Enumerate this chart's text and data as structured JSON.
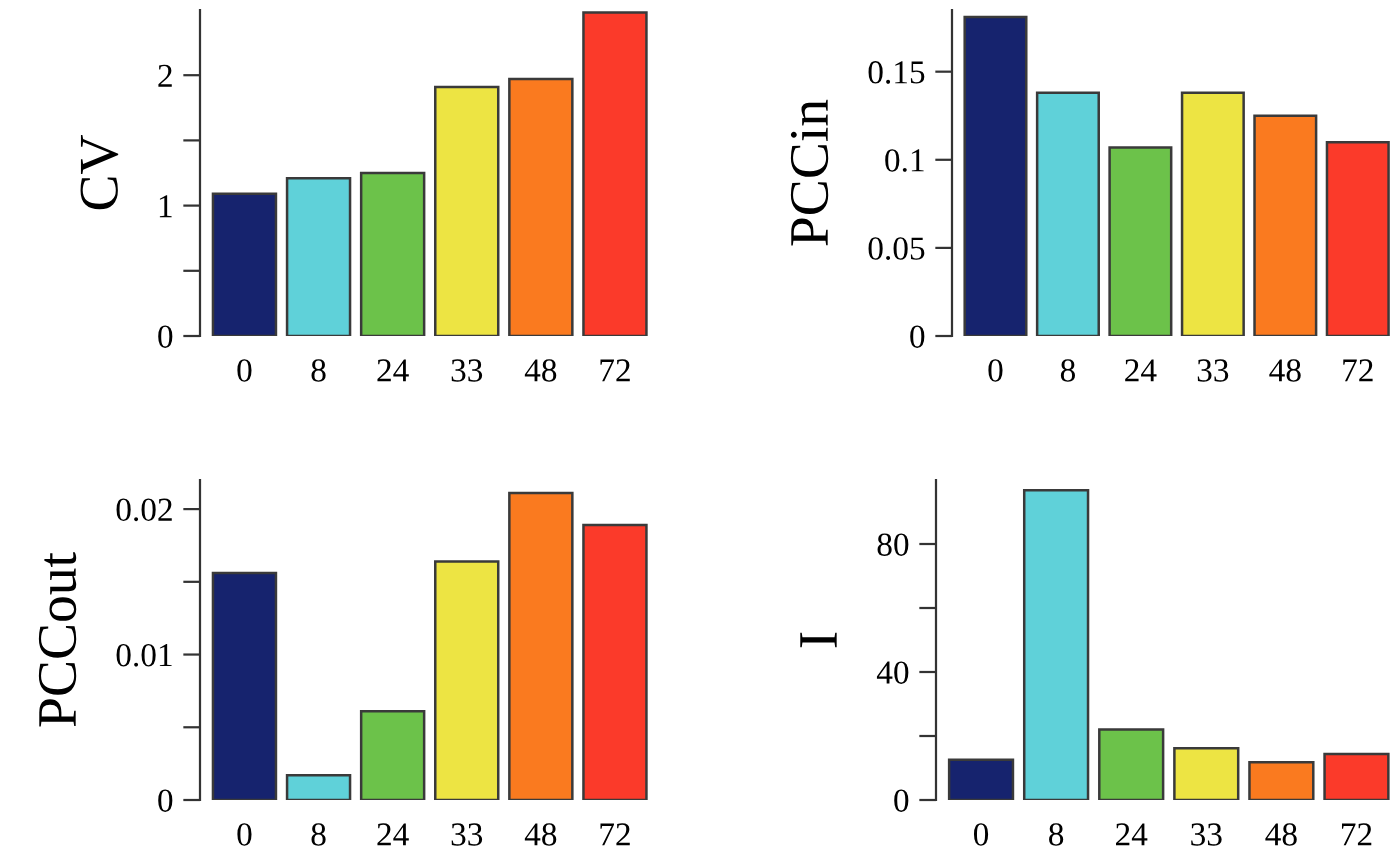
{
  "chart_data": [
    {
      "type": "bar",
      "ylabel": "CV",
      "categories": [
        "0",
        "8",
        "24",
        "33",
        "48",
        "72"
      ],
      "values": [
        1.09,
        1.21,
        1.25,
        1.91,
        1.97,
        2.48
      ],
      "colors": [
        "#16236e",
        "#5fd1d9",
        "#6cc24a",
        "#ede443",
        "#fa7a1f",
        "#fb3a2a"
      ],
      "ylim": [
        0,
        2.5
      ],
      "yticks": [
        0,
        {
          "value": 0.5,
          "label": null
        },
        1,
        {
          "value": 1.5,
          "label": null
        },
        2
      ],
      "grid": false,
      "legend": false
    },
    {
      "type": "bar",
      "ylabel": "PCCin",
      "categories": [
        "0",
        "8",
        "24",
        "33",
        "48",
        "72"
      ],
      "values": [
        0.181,
        0.138,
        0.107,
        0.138,
        0.125,
        0.11
      ],
      "colors": [
        "#16236e",
        "#5fd1d9",
        "#6cc24a",
        "#ede443",
        "#fa7a1f",
        "#fb3a2a"
      ],
      "ylim": [
        0,
        0.185
      ],
      "yticks": [
        0,
        0.05,
        0.1,
        0.15
      ],
      "grid": false,
      "legend": false
    },
    {
      "type": "bar",
      "ylabel": "PCCout",
      "categories": [
        "0",
        "8",
        "24",
        "33",
        "48",
        "72"
      ],
      "values": [
        0.0156,
        0.0017,
        0.0061,
        0.0164,
        0.0211,
        0.0189
      ],
      "colors": [
        "#16236e",
        "#5fd1d9",
        "#6cc24a",
        "#ede443",
        "#fa7a1f",
        "#fb3a2a"
      ],
      "ylim": [
        0,
        0.022
      ],
      "yticks": [
        0,
        {
          "value": 0.005,
          "label": null
        },
        0.01,
        {
          "value": 0.015,
          "label": null
        },
        0.02
      ],
      "grid": false,
      "legend": false
    },
    {
      "type": "bar",
      "ylabel": "I",
      "categories": [
        "0",
        "8",
        "24",
        "33",
        "48",
        "72"
      ],
      "values": [
        12.6,
        96.8,
        22.0,
        16.2,
        11.8,
        14.4
      ],
      "colors": [
        "#16236e",
        "#5fd1d9",
        "#6cc24a",
        "#ede443",
        "#fa7a1f",
        "#fb3a2a"
      ],
      "ylim": [
        0,
        100
      ],
      "yticks": [
        0,
        {
          "value": 20,
          "label": null
        },
        40,
        {
          "value": 60,
          "label": null
        },
        80
      ],
      "grid": false,
      "legend": false
    }
  ]
}
